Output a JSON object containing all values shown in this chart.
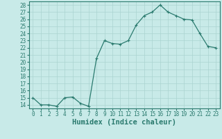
{
  "x": [
    0,
    1,
    2,
    3,
    4,
    5,
    6,
    7,
    8,
    9,
    10,
    11,
    12,
    13,
    14,
    15,
    16,
    17,
    18,
    19,
    20,
    21,
    22,
    23
  ],
  "y": [
    15,
    14,
    14,
    13.8,
    15,
    15.1,
    14.2,
    13.8,
    20.5,
    23,
    22.6,
    22.5,
    23,
    25.2,
    26.5,
    27,
    28,
    27,
    26.5,
    26,
    25.9,
    24,
    22.2,
    22
  ],
  "line_color": "#2a7a6e",
  "marker_color": "#2a7a6e",
  "bg_color": "#c8eae8",
  "grid_color": "#aad4d0",
  "xlabel": "Humidex (Indice chaleur)",
  "xlim": [
    -0.5,
    23.5
  ],
  "ylim": [
    13.5,
    28.5
  ],
  "yticks": [
    14,
    15,
    16,
    17,
    18,
    19,
    20,
    21,
    22,
    23,
    24,
    25,
    26,
    27,
    28
  ],
  "xticks": [
    0,
    1,
    2,
    3,
    4,
    5,
    6,
    7,
    8,
    9,
    10,
    11,
    12,
    13,
    14,
    15,
    16,
    17,
    18,
    19,
    20,
    21,
    22,
    23
  ],
  "tick_fontsize": 5.5,
  "xlabel_fontsize": 7.5,
  "marker_size": 3,
  "line_width": 0.9
}
